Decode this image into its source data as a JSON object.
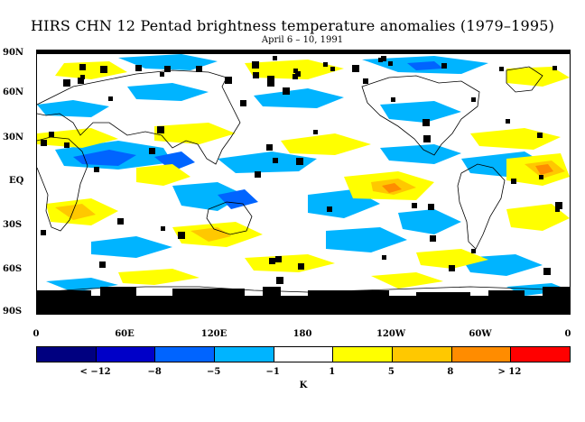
{
  "header": {
    "title": "HIRS CHN 12 Pentad brightness temperature anomalies (1979–1995)",
    "subtitle": "April 6 – 10, 1991"
  },
  "axes": {
    "lat_labels": [
      "90N",
      "60N",
      "30N",
      "EQ",
      "30S",
      "60S",
      "90S"
    ],
    "lon_labels": [
      "0",
      "60E",
      "120E",
      "180",
      "120W",
      "60W",
      "0"
    ]
  },
  "legend": {
    "colors": [
      "#000080",
      "#0000c8",
      "#0064ff",
      "#00b4ff",
      "#ffffff",
      "#ffff00",
      "#ffc800",
      "#ff8c00",
      "#ff0000"
    ],
    "tick_labels": [
      "< −12",
      "−8",
      "−5",
      "−1",
      "1",
      "5",
      "8",
      "> 12"
    ],
    "unit": "K"
  },
  "palette": {
    "missing": "#000000",
    "coast": "#000000"
  }
}
